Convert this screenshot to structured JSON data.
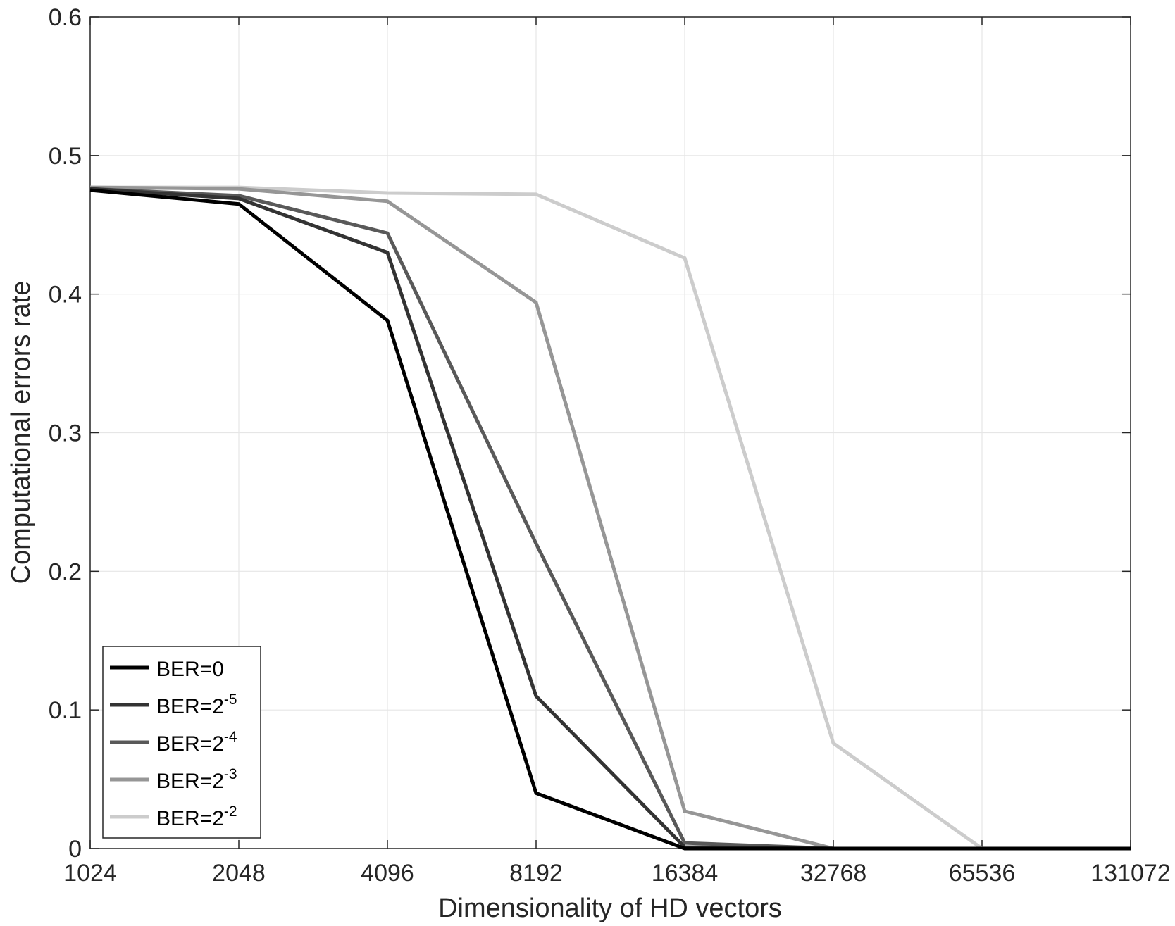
{
  "chart_data": {
    "type": "line",
    "title": "",
    "xlabel": "Dimensionality of HD vectors",
    "ylabel": "Computational errors rate",
    "x": [
      "1024",
      "2048",
      "4096",
      "8192",
      "16384",
      "32768",
      "65536",
      "131072"
    ],
    "x_scale": "log2",
    "ylim": [
      0,
      0.6
    ],
    "yticks": [
      "0",
      "0.1",
      "0.2",
      "0.3",
      "0.4",
      "0.5",
      "0.6"
    ],
    "grid": true,
    "legend_position": "bottom-left",
    "series": [
      {
        "name": "BER=0",
        "base": "BER=2",
        "exp": "",
        "color": "#000000",
        "values": [
          0.475,
          0.465,
          0.381,
          0.04,
          0.0,
          0.0,
          0.0,
          0.0
        ]
      },
      {
        "name": "BER=2^-5",
        "base": "BER=2",
        "exp": "-5",
        "color": "#333333",
        "values": [
          0.476,
          0.469,
          0.43,
          0.11,
          0.001,
          0.0,
          0.0,
          0.0
        ]
      },
      {
        "name": "BER=2^-4",
        "base": "BER=2",
        "exp": "-4",
        "color": "#595959",
        "values": [
          0.476,
          0.471,
          0.444,
          0.22,
          0.004,
          0.0,
          0.0,
          0.0
        ]
      },
      {
        "name": "BER=2^-3",
        "base": "BER=2",
        "exp": "-3",
        "color": "#969696",
        "values": [
          0.477,
          0.476,
          0.467,
          0.394,
          0.027,
          0.0,
          0.0,
          0.0
        ]
      },
      {
        "name": "BER=2^-2",
        "base": "BER=2",
        "exp": "-2",
        "color": "#cccccc",
        "values": [
          0.477,
          0.477,
          0.473,
          0.472,
          0.426,
          0.076,
          0.0,
          0.0
        ]
      }
    ]
  }
}
